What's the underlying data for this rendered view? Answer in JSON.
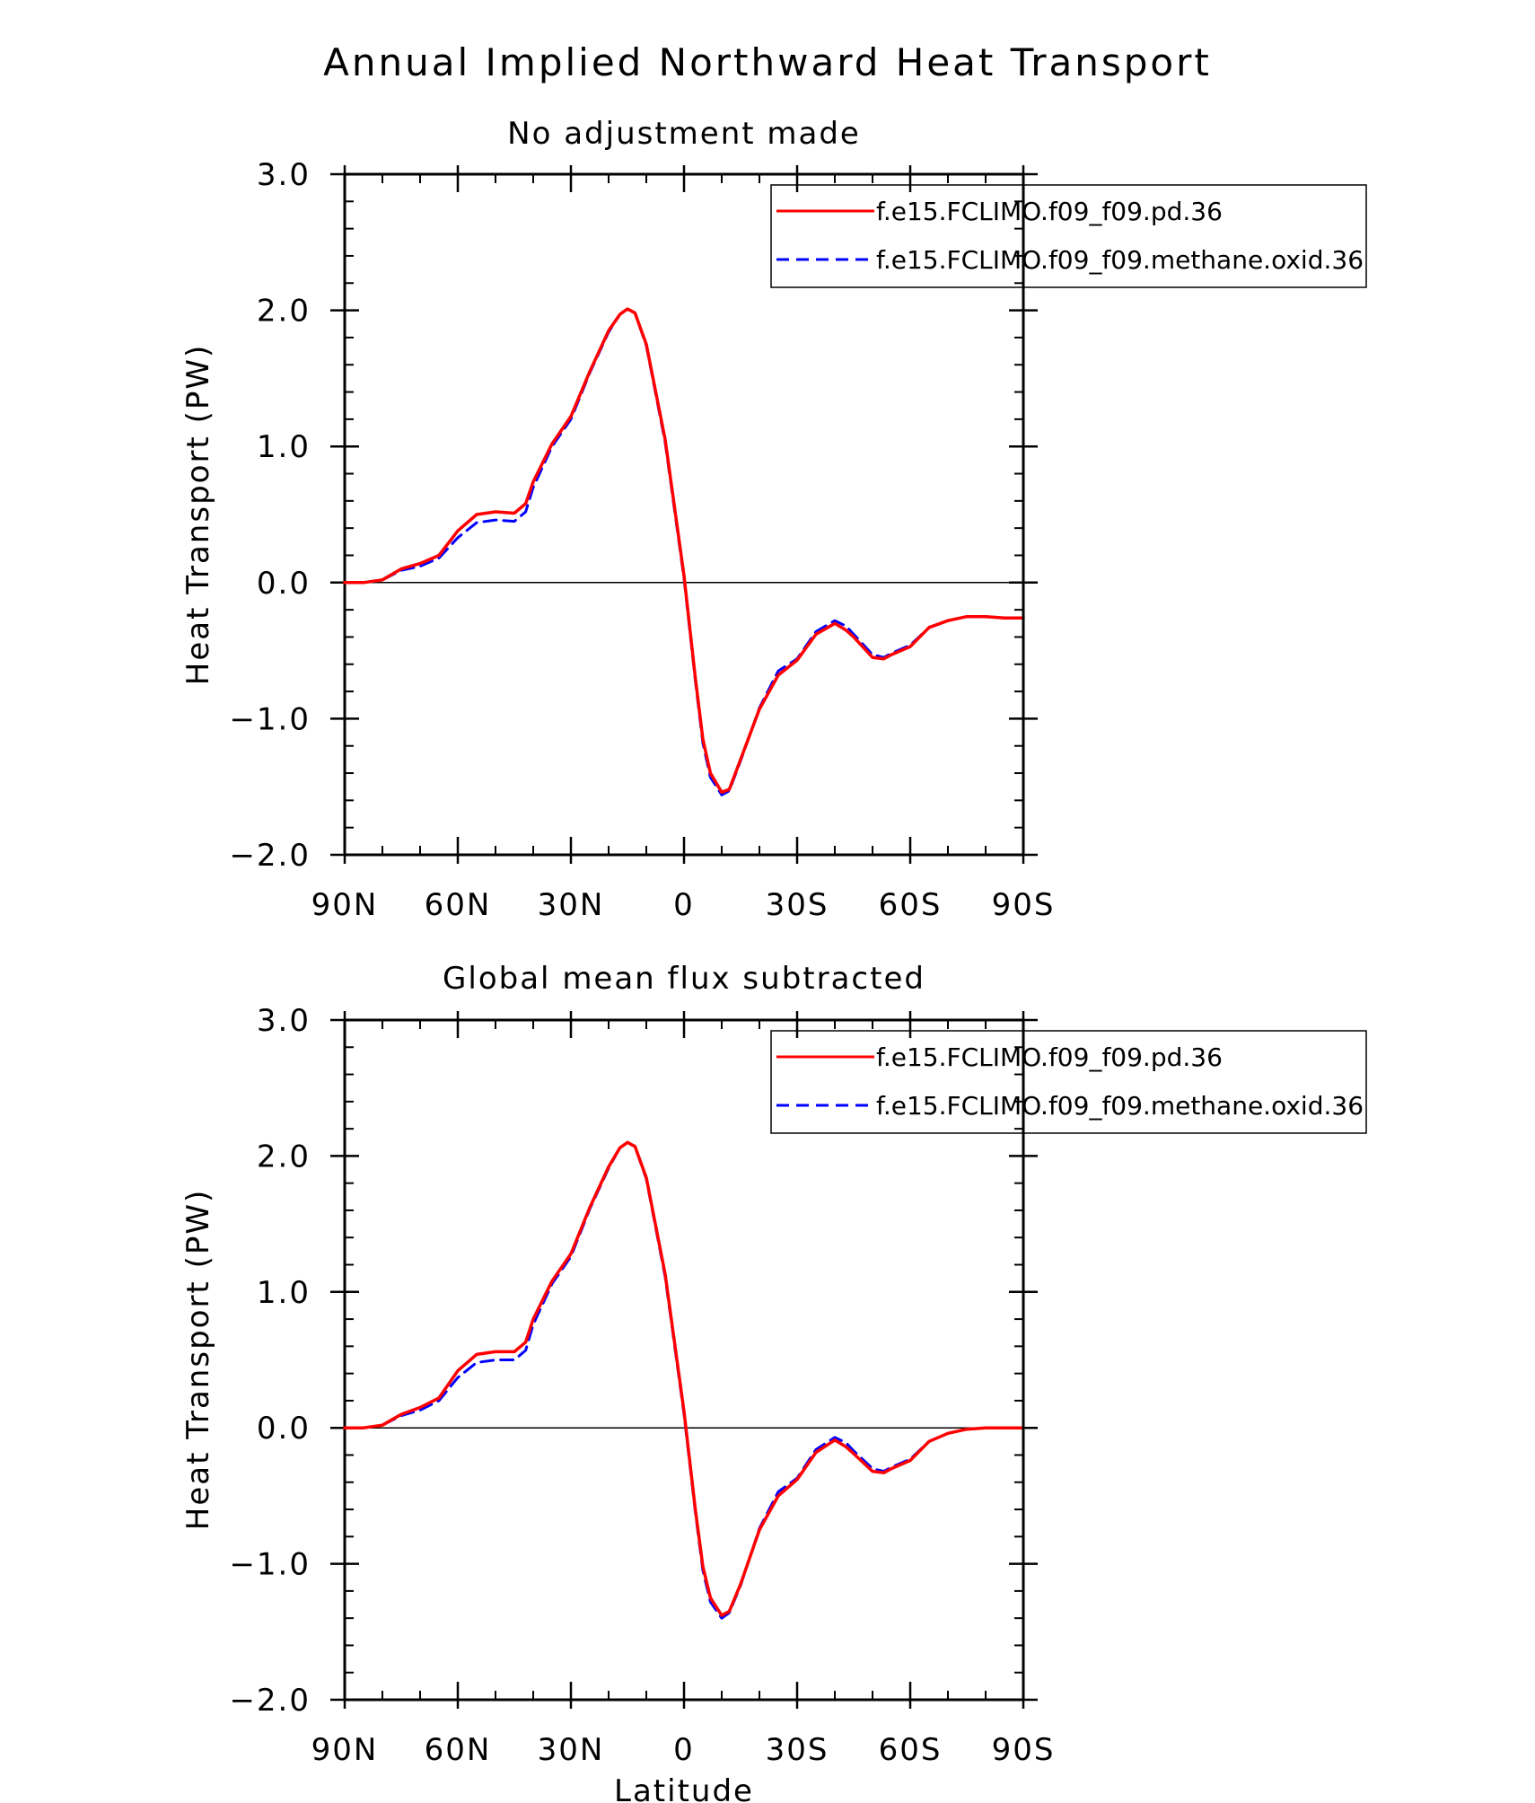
{
  "figure": {
    "title": "Annual Implied Northward Heat Transport"
  },
  "chart_data": [
    {
      "type": "line",
      "title": "No adjustment made",
      "xlabel": "",
      "ylabel": "Heat Transport (PW)",
      "xlim": [
        90,
        -90
      ],
      "ylim": [
        -2.0,
        3.0
      ],
      "x_ticks": [
        90,
        60,
        30,
        0,
        -30,
        -60,
        -90
      ],
      "x_tick_labels": [
        "90N",
        "60N",
        "30N",
        "0",
        "30S",
        "60S",
        "90S"
      ],
      "y_ticks": [
        3.0,
        2.0,
        1.0,
        0.0,
        -1.0,
        -2.0
      ],
      "y_tick_labels": [
        "3.0",
        "2.0",
        "1.0",
        "0.0",
        "−1.0",
        "−2.0"
      ],
      "grid": false,
      "zero_line": true,
      "legend": "top-right",
      "x": [
        90,
        85,
        80,
        75,
        70,
        65,
        60,
        55,
        50,
        45,
        42,
        40,
        35,
        30,
        25,
        20,
        17,
        15,
        13,
        10,
        5,
        0,
        -3,
        -5,
        -7,
        -10,
        -12,
        -15,
        -20,
        -25,
        -30,
        -35,
        -40,
        -43,
        -45,
        -50,
        -53,
        -55,
        -60,
        -65,
        -70,
        -75,
        -80,
        -85,
        -90
      ],
      "series": [
        {
          "name": "f.e15.FCLIMO.f09_f09.pd.36",
          "color": "#ff0000",
          "dash": "solid",
          "values": [
            0.0,
            0.0,
            0.02,
            0.1,
            0.14,
            0.2,
            0.38,
            0.5,
            0.52,
            0.51,
            0.58,
            0.74,
            1.02,
            1.22,
            1.55,
            1.85,
            1.97,
            2.01,
            1.98,
            1.75,
            1.05,
            0.05,
            -0.7,
            -1.15,
            -1.4,
            -1.54,
            -1.52,
            -1.3,
            -0.93,
            -0.68,
            -0.57,
            -0.38,
            -0.3,
            -0.35,
            -0.4,
            -0.55,
            -0.56,
            -0.53,
            -0.47,
            -0.33,
            -0.28,
            -0.25,
            -0.25,
            -0.26,
            -0.26
          ]
        },
        {
          "name": "f.e15.FCLIMO.f09_f09.methane.oxid.36",
          "color": "#0000ff",
          "dash": "dashed",
          "values": [
            0.0,
            0.0,
            0.02,
            0.09,
            0.12,
            0.18,
            0.33,
            0.44,
            0.46,
            0.45,
            0.52,
            0.7,
            1.0,
            1.2,
            1.54,
            1.84,
            1.97,
            2.01,
            1.98,
            1.74,
            1.03,
            0.03,
            -0.72,
            -1.18,
            -1.43,
            -1.56,
            -1.53,
            -1.31,
            -0.92,
            -0.65,
            -0.56,
            -0.36,
            -0.28,
            -0.32,
            -0.38,
            -0.53,
            -0.55,
            -0.52,
            -0.46,
            -0.33,
            -0.28,
            -0.25,
            -0.25,
            -0.26,
            -0.26
          ]
        }
      ]
    },
    {
      "type": "line",
      "title": "Global mean flux subtracted",
      "xlabel": "Latitude",
      "ylabel": "Heat Transport (PW)",
      "xlim": [
        90,
        -90
      ],
      "ylim": [
        -2.0,
        3.0
      ],
      "x_ticks": [
        90,
        60,
        30,
        0,
        -30,
        -60,
        -90
      ],
      "x_tick_labels": [
        "90N",
        "60N",
        "30N",
        "0",
        "30S",
        "60S",
        "90S"
      ],
      "y_ticks": [
        3.0,
        2.0,
        1.0,
        0.0,
        -1.0,
        -2.0
      ],
      "y_tick_labels": [
        "3.0",
        "2.0",
        "1.0",
        "0.0",
        "−1.0",
        "−2.0"
      ],
      "grid": false,
      "zero_line": true,
      "legend": "top-right",
      "x": [
        90,
        85,
        80,
        75,
        70,
        65,
        60,
        55,
        50,
        45,
        42,
        40,
        35,
        30,
        25,
        20,
        17,
        15,
        13,
        10,
        5,
        0,
        -3,
        -5,
        -7,
        -10,
        -12,
        -15,
        -20,
        -25,
        -30,
        -35,
        -40,
        -43,
        -45,
        -50,
        -53,
        -55,
        -60,
        -65,
        -70,
        -75,
        -80,
        -85,
        -90
      ],
      "series": [
        {
          "name": "f.e15.FCLIMO.f09_f09.pd.36",
          "color": "#ff0000",
          "dash": "solid",
          "values": [
            0.0,
            0.0,
            0.02,
            0.1,
            0.15,
            0.22,
            0.42,
            0.54,
            0.56,
            0.56,
            0.63,
            0.8,
            1.08,
            1.28,
            1.62,
            1.92,
            2.06,
            2.1,
            2.07,
            1.84,
            1.13,
            0.12,
            -0.6,
            -1.02,
            -1.25,
            -1.38,
            -1.35,
            -1.15,
            -0.75,
            -0.5,
            -0.38,
            -0.18,
            -0.09,
            -0.14,
            -0.19,
            -0.32,
            -0.33,
            -0.3,
            -0.24,
            -0.1,
            -0.04,
            -0.01,
            0.0,
            0.0,
            0.0
          ]
        },
        {
          "name": "f.e15.FCLIMO.f09_f09.methane.oxid.36",
          "color": "#0000ff",
          "dash": "dashed",
          "values": [
            0.0,
            0.0,
            0.02,
            0.09,
            0.13,
            0.2,
            0.37,
            0.48,
            0.5,
            0.5,
            0.57,
            0.76,
            1.06,
            1.26,
            1.61,
            1.91,
            2.06,
            2.1,
            2.07,
            1.83,
            1.11,
            0.1,
            -0.62,
            -1.05,
            -1.28,
            -1.4,
            -1.36,
            -1.16,
            -0.74,
            -0.47,
            -0.37,
            -0.16,
            -0.07,
            -0.11,
            -0.17,
            -0.3,
            -0.32,
            -0.29,
            -0.23,
            -0.1,
            -0.04,
            -0.01,
            0.0,
            0.0,
            0.0
          ]
        }
      ]
    }
  ]
}
